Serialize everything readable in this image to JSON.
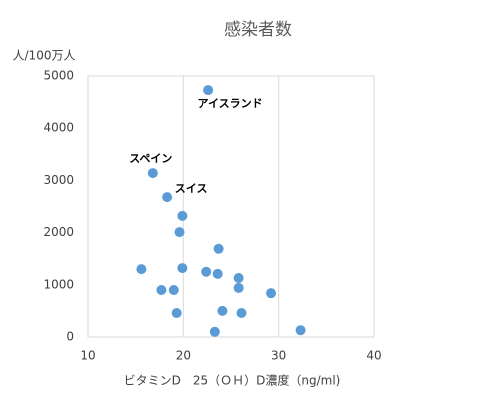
{
  "chart_data": {
    "type": "scatter",
    "title": "感染者数",
    "y_label": "人/100万人",
    "x_label": "ビタミンD　25（ＯＨ）D濃度（ng/ml)",
    "xlim": [
      10,
      40
    ],
    "xticks": [
      10,
      20,
      30,
      40
    ],
    "ylim": [
      0,
      5000
    ],
    "yticks": [
      0,
      1000,
      2000,
      3000,
      4000,
      5000
    ],
    "grid": "x",
    "color": "#5b9bd5",
    "x": [
      22.6,
      16.8,
      18.3,
      19.9,
      19.6,
      23.7,
      15.6,
      19.9,
      22.4,
      23.6,
      25.8,
      25.8,
      17.7,
      19.0,
      29.2,
      19.3,
      24.1,
      26.1,
      23.3,
      32.3
    ],
    "values": [
      4730,
      3140,
      2680,
      2320,
      2010,
      1690,
      1300,
      1320,
      1250,
      1210,
      1130,
      940,
      900,
      900,
      840,
      460,
      500,
      460,
      100,
      130
    ],
    "point_labels": [
      "アイスランド",
      "スペイン",
      "スイス",
      null,
      null,
      null,
      null,
      null,
      null,
      null,
      null,
      null,
      null,
      null,
      null,
      null,
      null,
      null,
      null,
      null
    ]
  }
}
